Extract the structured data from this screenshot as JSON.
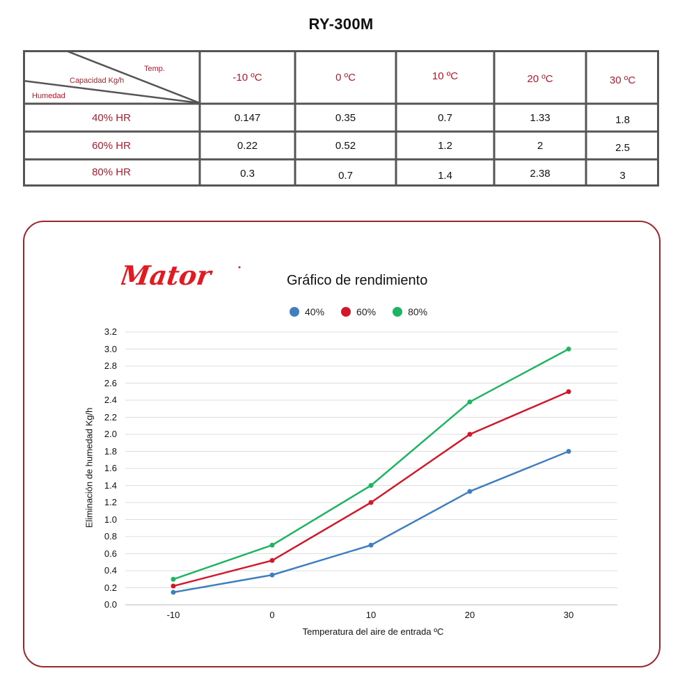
{
  "header": {
    "title": "RY-300M"
  },
  "table": {
    "corner": {
      "top_label": "Temp.",
      "middle_label": "Capacidad Kg/h",
      "bottom_label": "Humedad"
    },
    "columns": [
      "-10 ºC",
      "0 ºC",
      "10 ºC",
      "20 ºC",
      "30 ºC"
    ],
    "rows": [
      {
        "label": "40% HR",
        "values": [
          "0.147",
          "0.35",
          "0.7",
          "1.33",
          "1.8"
        ]
      },
      {
        "label": "60% HR",
        "values": [
          "0.22",
          "0.52",
          "1.2",
          "2",
          "2.5"
        ]
      },
      {
        "label": "80% HR",
        "values": [
          "0.3",
          "0.7",
          "1.4",
          "2.38",
          "3"
        ]
      }
    ]
  },
  "brand": {
    "logo_text": "Mator",
    "color": "#e01b22"
  },
  "chart_data": {
    "type": "line",
    "title": "Gráfico de rendimiento",
    "xlabel": "Temperatura del aire de entrada ºC",
    "ylabel": "Eliminación de humedad Kg/h",
    "x": [
      -10,
      0,
      10,
      20,
      30
    ],
    "x_tick_labels": [
      "-10",
      "0",
      "10",
      "20",
      "30"
    ],
    "y_tick_labels": [
      "0.0",
      "0.2",
      "0.4",
      "0.6",
      "0.8",
      "1.0",
      "1.2",
      "1.4",
      "1.6",
      "1.8",
      "2.0",
      "2.2",
      "2.4",
      "2.6",
      "2.8",
      "3.0",
      "3.2"
    ],
    "ylim": [
      0,
      3.2
    ],
    "grid": true,
    "legend_position": "top",
    "series": [
      {
        "name": "40%",
        "color": "#3f7fbf",
        "values": [
          0.147,
          0.35,
          0.7,
          1.33,
          1.8
        ]
      },
      {
        "name": "60%",
        "color": "#d0182a",
        "values": [
          0.22,
          0.52,
          1.2,
          2.0,
          2.5
        ]
      },
      {
        "name": "80%",
        "color": "#1fb462",
        "values": [
          0.3,
          0.7,
          1.4,
          2.38,
          3.0
        ]
      }
    ]
  }
}
